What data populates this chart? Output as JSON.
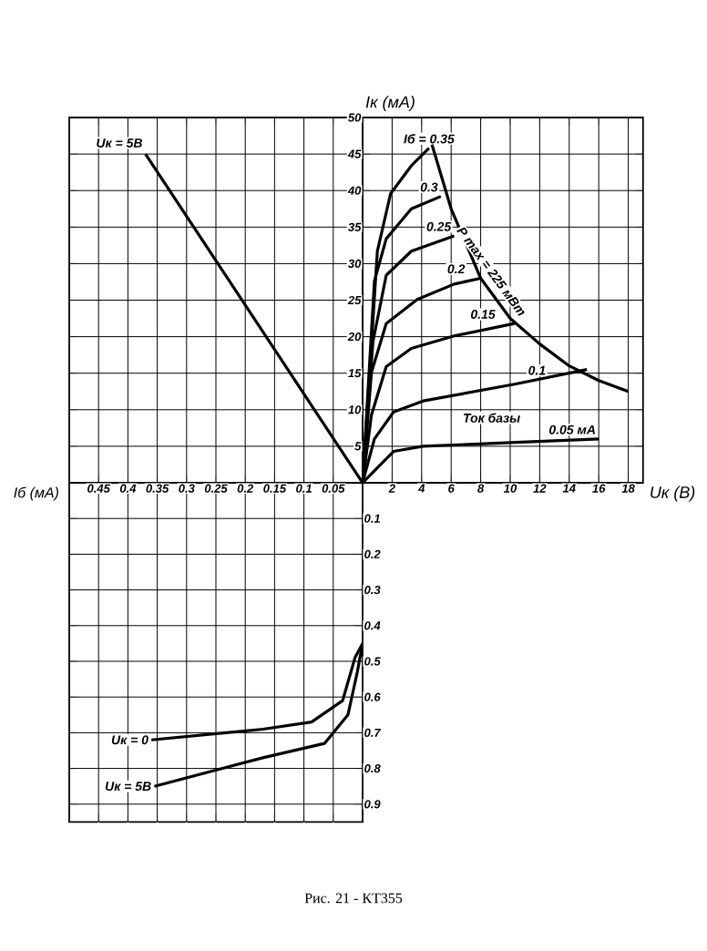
{
  "chart_data": [
    {
      "type": "line",
      "xlabel": "Uк (В)",
      "ylabel": "Iк (мА)",
      "xlim": [
        0,
        19
      ],
      "ylim": [
        0,
        50
      ],
      "xticks": [
        2,
        4,
        6,
        8,
        10,
        12,
        14,
        16,
        18
      ],
      "yticks": [
        5,
        10,
        15,
        20,
        25,
        30,
        35,
        40,
        45,
        50
      ],
      "grid": true,
      "series": [
        {
          "name": "Iб = 0.35",
          "color": "#000000",
          "x": [
            0,
            1,
            1.9,
            3.3,
            4.5
          ],
          "values": [
            0,
            31.7,
            39.6,
            43.4,
            45.8
          ]
        },
        {
          "name": "0.3",
          "color": "#000000",
          "x": [
            0,
            0.8,
            1.6,
            3.3,
            5.3
          ],
          "values": [
            0,
            27.6,
            33.4,
            37.5,
            39.2
          ]
        },
        {
          "name": "0.25",
          "color": "#000000",
          "x": [
            0,
            0.7,
            1.6,
            3.3,
            6.2
          ],
          "values": [
            0,
            19.3,
            28.4,
            31.7,
            33.8
          ]
        },
        {
          "name": "0.2",
          "color": "#000000",
          "x": [
            0,
            0.6,
            1.6,
            3.7,
            6.2,
            8
          ],
          "values": [
            0,
            15.1,
            21.8,
            25.1,
            27.2,
            28
          ]
        },
        {
          "name": "0.15",
          "color": "#000000",
          "x": [
            0,
            0.6,
            1.6,
            3.3,
            6.2,
            10.3
          ],
          "values": [
            0,
            9.3,
            15.9,
            18.4,
            20.1,
            21.8
          ]
        },
        {
          "name": "0.1",
          "color": "#000000",
          "x": [
            0,
            0.8,
            2.1,
            4.1,
            10.3,
            15.2
          ],
          "values": [
            0,
            6,
            9.7,
            11.2,
            13.5,
            15.5
          ]
        },
        {
          "name": "0.05 мА",
          "color": "#000000",
          "x": [
            0,
            2.1,
            4.1,
            10,
            16
          ],
          "values": [
            0,
            4.3,
            5,
            5.5,
            6
          ]
        },
        {
          "name": "P max = 225 мВт",
          "color": "#000000",
          "x": [
            4.7,
            6,
            8,
            10,
            12,
            14,
            16,
            18
          ],
          "values": [
            46.3,
            37.5,
            28,
            22.5,
            19,
            16,
            14,
            12.5
          ]
        }
      ],
      "annotations": [
        "Ток базы",
        "Рис. 21 - КТ355"
      ]
    },
    {
      "type": "line",
      "xlabel": "Iб (мА)",
      "xlim": [
        0.5,
        0
      ],
      "ylim": [
        0,
        50
      ],
      "xticks": [
        0.05,
        0.1,
        0.15,
        0.2,
        0.25,
        0.3,
        0.35,
        0.4,
        0.45
      ],
      "yticks": [
        5,
        10,
        15,
        20,
        25,
        30,
        35,
        40,
        45,
        50
      ],
      "grid": true,
      "tick_labels": "x",
      "series": [
        {
          "name": "Uк = 5В",
          "color": "#000000",
          "x": [
            0,
            0.37
          ],
          "values": [
            0,
            45
          ]
        }
      ]
    },
    {
      "type": "line",
      "xlim": [
        0.5,
        0
      ],
      "ylim": [
        0.95,
        0
      ],
      "xticks": [
        0.05,
        0.1,
        0.15,
        0.2,
        0.25,
        0.3,
        0.35,
        0.4,
        0.45
      ],
      "yticks": [
        0.1,
        0.2,
        0.3,
        0.4,
        0.5,
        0.6,
        0.7,
        0.8,
        0.9
      ],
      "grid": true,
      "tick_labels": "y",
      "series": [
        {
          "name": "Uк = 0",
          "color": "#000000",
          "x": [
            0,
            0.013,
            0.034,
            0.087,
            0.17,
            0.36
          ],
          "values": [
            0.45,
            0.49,
            0.61,
            0.67,
            0.69,
            0.72
          ]
        },
        {
          "name": "Uк = 5В",
          "color": "#000000",
          "x": [
            0,
            0.009,
            0.025,
            0.065,
            0.17,
            0.355
          ],
          "values": [
            0.45,
            0.53,
            0.65,
            0.73,
            0.77,
            0.85
          ]
        }
      ]
    }
  ]
}
